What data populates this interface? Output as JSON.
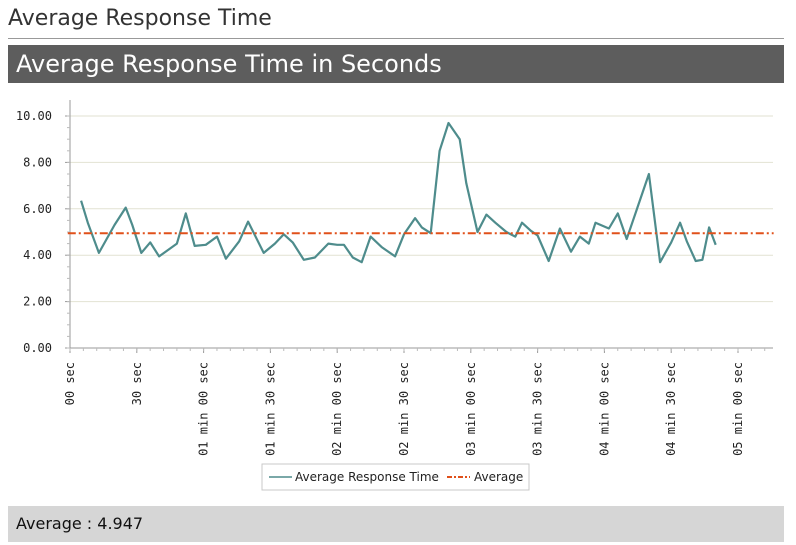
{
  "page": {
    "title": "Average Response Time",
    "chart_title": "Average Response Time in Seconds",
    "footer": "Average : 4.947"
  },
  "colors": {
    "series": "#4e8c8c",
    "average": "#e0501a",
    "header_bg": "#5d5d5d",
    "footer_bg": "#d6d6d6",
    "grid": "#e2e2d2"
  },
  "chart_data": {
    "type": "line",
    "title": "Average Response Time in Seconds",
    "xlabel": "",
    "ylabel": "",
    "ylim": [
      0,
      10
    ],
    "xlim": [
      0,
      315
    ],
    "yticks": [
      0,
      2,
      4,
      6,
      8,
      10
    ],
    "ytick_labels": [
      "0.00",
      "2.00",
      "4.00",
      "6.00",
      "8.00",
      "10.00"
    ],
    "xticks": [
      0,
      30,
      60,
      90,
      120,
      150,
      180,
      210,
      240,
      270,
      300
    ],
    "xtick_labels": [
      "00 sec",
      "30 sec",
      "01 min 00 sec",
      "01 min 30 sec",
      "02 min 00 sec",
      "02 min 30 sec",
      "03 min 00 sec",
      "03 min 30 sec",
      "04 min 00 sec",
      "04 min 30 sec",
      "05 min 00 sec"
    ],
    "grid": true,
    "legend_position": "bottom-center",
    "series": [
      {
        "name": "Average Response Time",
        "color": "#4e8c8c",
        "x": [
          5,
          8,
          13,
          20,
          25,
          28,
          32,
          36,
          40,
          48,
          52,
          56,
          61,
          66,
          70,
          76,
          80,
          87,
          92,
          96,
          100,
          105,
          110,
          116,
          120,
          123,
          127,
          131,
          135,
          140,
          146,
          150,
          155,
          158,
          162,
          166,
          170,
          175,
          178,
          183,
          187,
          191,
          196,
          200,
          203,
          207,
          210,
          215,
          220,
          225,
          229,
          233,
          236,
          242,
          246,
          250,
          260,
          265,
          270,
          274,
          277,
          281,
          284,
          287,
          290
        ],
        "y": [
          6.35,
          5.4,
          4.1,
          5.3,
          6.05,
          5.3,
          4.1,
          4.55,
          3.95,
          4.5,
          5.8,
          4.4,
          4.45,
          4.8,
          3.85,
          4.6,
          5.45,
          4.1,
          4.5,
          4.9,
          4.55,
          3.8,
          3.9,
          4.5,
          4.45,
          4.45,
          3.9,
          3.7,
          4.8,
          4.35,
          3.95,
          4.9,
          5.6,
          5.2,
          4.95,
          8.5,
          9.7,
          9.0,
          7.1,
          5.0,
          5.75,
          5.4,
          5.0,
          4.8,
          5.4,
          5.05,
          4.85,
          3.75,
          5.15,
          4.15,
          4.8,
          4.5,
          5.4,
          5.15,
          5.8,
          4.7,
          7.5,
          3.7,
          4.55,
          5.4,
          4.6,
          3.75,
          3.8,
          5.2,
          4.45
        ],
        "values_note": ""
      },
      {
        "name": "Average",
        "color": "#e0501a",
        "x": [
          -1,
          316
        ],
        "y": [
          4.947,
          4.947
        ]
      }
    ]
  }
}
